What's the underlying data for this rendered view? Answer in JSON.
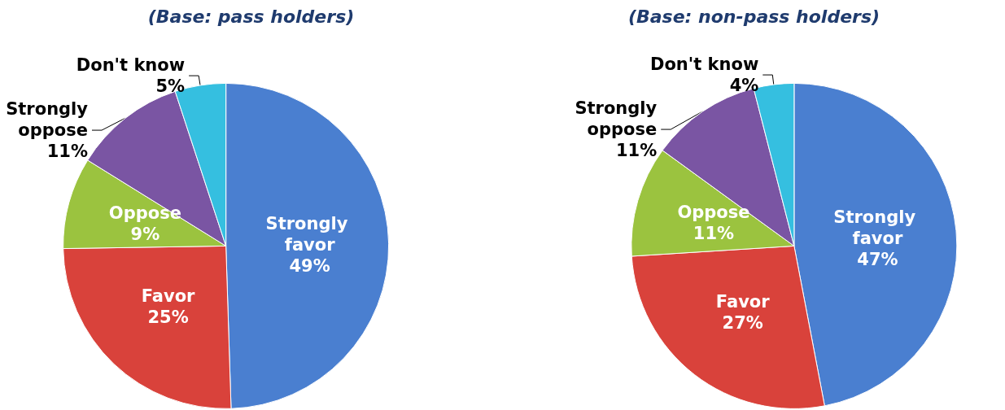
{
  "chart_data": [
    {
      "type": "pie",
      "title": "(Base: pass holders)",
      "categories": [
        "Strongly favor",
        "Favor",
        "Oppose",
        "Strongly oppose",
        "Don't know"
      ],
      "values": [
        49,
        25,
        9,
        11,
        5
      ],
      "value_labels": [
        "49%",
        "25%",
        "9%",
        "11%",
        "5%"
      ],
      "colors": [
        "#4a7fd0",
        "#d9423b",
        "#9bc33f",
        "#7a55a3",
        "#35bfe0"
      ],
      "legend": false
    },
    {
      "type": "pie",
      "title": "(Base: non-pass holders)",
      "categories": [
        "Strongly favor",
        "Favor",
        "Oppose",
        "Strongly oppose",
        "Don't know"
      ],
      "values": [
        47,
        27,
        11,
        11,
        4
      ],
      "value_labels": [
        "47%",
        "27%",
        "11%",
        "11%",
        "4%"
      ],
      "colors": [
        "#4a7fd0",
        "#d9423b",
        "#9bc33f",
        "#7a55a3",
        "#35bfe0"
      ],
      "legend": false
    }
  ]
}
